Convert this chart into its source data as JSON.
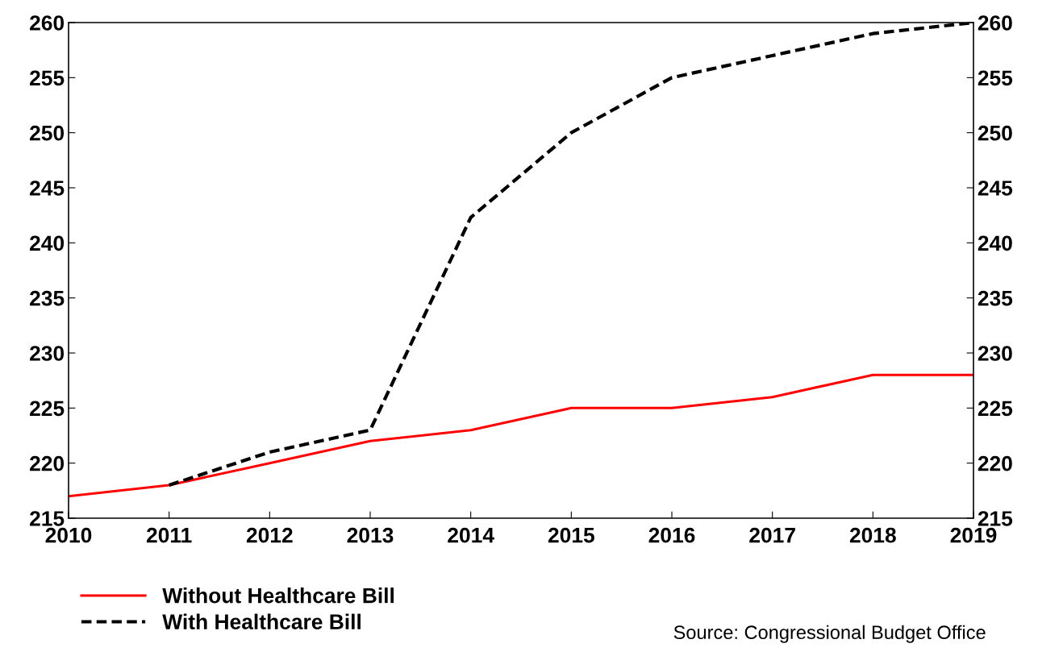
{
  "chart_data": {
    "type": "line",
    "x": [
      2010,
      2011,
      2012,
      2013,
      2014,
      2015,
      2016,
      2017,
      2018,
      2019
    ],
    "series": [
      {
        "name": "Without Healthcare Bill",
        "color": "#ff0000",
        "line_style": "solid",
        "values": [
          217,
          218,
          220,
          222,
          223,
          225,
          225,
          226,
          228,
          228
        ]
      },
      {
        "name": "With Healthcare Bill",
        "color": "#000000",
        "line_style": "dashed",
        "values": [
          null,
          218,
          221,
          223,
          242.3,
          250,
          255,
          257,
          259,
          260
        ]
      }
    ],
    "xlim": [
      2010,
      2019
    ],
    "xticks": [
      2010,
      2011,
      2012,
      2013,
      2014,
      2015,
      2016,
      2017,
      2018,
      2019
    ],
    "ylim": [
      215,
      260
    ],
    "yticks": [
      215,
      220,
      225,
      230,
      235,
      240,
      245,
      250,
      255,
      260
    ],
    "y2lim": [
      215,
      260
    ],
    "y2ticks": [
      215,
      220,
      225,
      230,
      235,
      240,
      245,
      250,
      255,
      260
    ],
    "grid": false,
    "legend": "bottom left",
    "marker": "none",
    "annotations": [
      "Source: Congressional Budget Office"
    ]
  }
}
